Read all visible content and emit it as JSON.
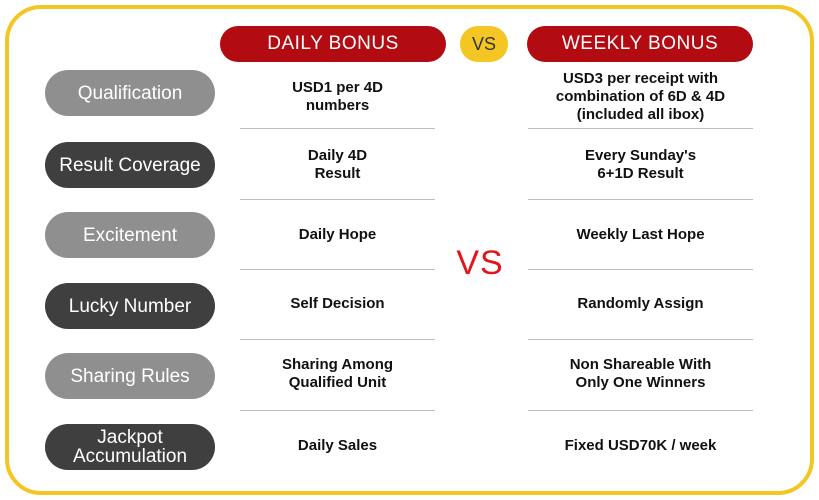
{
  "header": {
    "daily": "DAILY BONUS",
    "vs": "VS",
    "weekly": "WEEKLY BONUS"
  },
  "center_vs": "VS",
  "rows": [
    {
      "label": "Qualification",
      "daily": "USD1 per 4D\nnumbers",
      "weekly": "USD3 per receipt with\ncombination of 6D & 4D\n(included all ibox)"
    },
    {
      "label": "Result Coverage",
      "daily": "Daily 4D\nResult",
      "weekly": "Every Sunday's\n6+1D Result"
    },
    {
      "label": "Excitement",
      "daily": "Daily Hope",
      "weekly": "Weekly Last Hope"
    },
    {
      "label": "Lucky Number",
      "daily": "Self Decision",
      "weekly": "Randomly Assign"
    },
    {
      "label": "Sharing Rules",
      "daily": "Sharing Among\nQualified Unit",
      "weekly": "Non Shareable With\nOnly One Winners"
    },
    {
      "label": "Jackpot\nAccumulation",
      "daily": "Daily Sales",
      "weekly": "Fixed USD70K / week"
    }
  ],
  "colors": {
    "header_red": "#b30b12",
    "vs_yellow": "#f3c623",
    "vs_text_red": "#e3141b",
    "label_light": "#8f8f8f",
    "label_dark": "#3f3f3f"
  }
}
